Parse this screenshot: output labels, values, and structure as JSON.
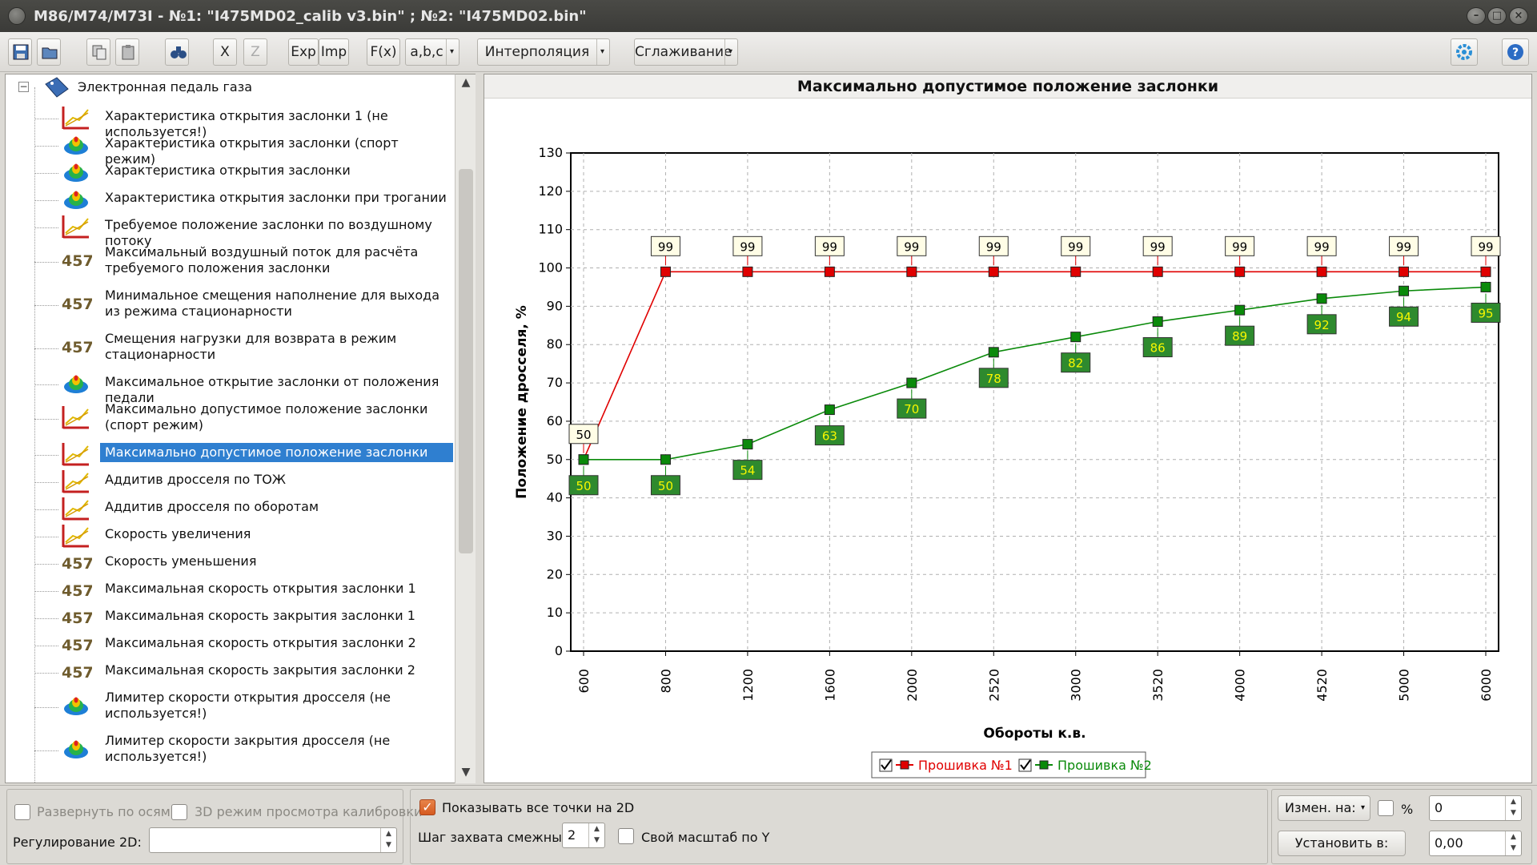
{
  "window": {
    "title": "M86/M74/M73I - №1: \"I475MD02_calib v3.bin\" ; №2: \"I475MD02.bin\""
  },
  "toolbar": {
    "x_label": "X",
    "z_label": "Z",
    "exp_label": "Exp",
    "imp_label": "Imp",
    "fx_label": "F(x)",
    "abc_label": "a,b,c",
    "interp_label": "Интерполяция",
    "smooth_label": "Сглаживание"
  },
  "tree": {
    "root_label": "Электронная педаль газа",
    "items": [
      {
        "label": "Характеристика открытия заслонки 1 (не используется!)",
        "icon": "chart-2d-icon"
      },
      {
        "label": "Характеристика открытия заслонки (спорт режим)",
        "icon": "map-3d-icon"
      },
      {
        "label": "Характеристика открытия заслонки",
        "icon": "map-3d-icon"
      },
      {
        "label": "Характеристика открытия заслонки при трогании",
        "icon": "map-3d-icon"
      },
      {
        "label": "Требуемое положение заслонки по воздушному потоку",
        "icon": "chart-2d-icon"
      },
      {
        "label": "Максимальный воздушный поток для расчёта требуемого положения заслонки",
        "icon": "constant-457-icon"
      },
      {
        "label": "Минимальное смещения наполнение для выхода из режима стационарности",
        "icon": "constant-457-icon"
      },
      {
        "label": "Смещения нагрузки для возврата в режим стационарности",
        "icon": "constant-457-icon"
      },
      {
        "label": "Максимальное открытие заслонки от положения педали",
        "icon": "map-3d-icon"
      },
      {
        "label": "Максимально допустимое положение заслонки (спорт режим)",
        "icon": "chart-2d-icon"
      },
      {
        "label": "Максимально допустимое положение заслонки",
        "icon": "chart-2d-icon"
      },
      {
        "label": "Аддитив дросселя по ТОЖ",
        "icon": "chart-2d-icon"
      },
      {
        "label": "Аддитив дросселя по оборотам",
        "icon": "chart-2d-icon"
      },
      {
        "label": "Скорость увеличения",
        "icon": "chart-2d-icon"
      },
      {
        "label": "Скорость уменьшения",
        "icon": "constant-457-icon"
      },
      {
        "label": "Максимальная скорость открытия заслонки 1",
        "icon": "constant-457-icon"
      },
      {
        "label": "Максимальная скорость закрытия заслонки 1",
        "icon": "constant-457-icon"
      },
      {
        "label": "Максимальная скорость открытия заслонки 2",
        "icon": "constant-457-icon"
      },
      {
        "label": "Максимальная скорость закрытия заслонки 2",
        "icon": "constant-457-icon"
      },
      {
        "label": "Лимитер скорости открытия дросселя (не используется!)",
        "icon": "map-3d-icon"
      },
      {
        "label": "Лимитер скорости закрытия дросселя (не используется!)",
        "icon": "map-3d-icon"
      }
    ],
    "selected_index": 10,
    "const_glyph": "457"
  },
  "chart_data": {
    "type": "line",
    "title": "Максимально допустимое положение заслонки",
    "xlabel": "Обороты к.в.",
    "ylabel": "Положение дросселя, %",
    "categories": [
      "600",
      "800",
      "1200",
      "1600",
      "2000",
      "2520",
      "3000",
      "3520",
      "4000",
      "4520",
      "5000",
      "6000"
    ],
    "ylim": [
      0,
      130
    ],
    "yticks": [
      0,
      10,
      20,
      30,
      40,
      50,
      60,
      70,
      80,
      90,
      100,
      110,
      120,
      130
    ],
    "grid": true,
    "legend_position": "bottom-center",
    "series": [
      {
        "name": "Прошивка №1",
        "color": "#e00000",
        "values": [
          50,
          99,
          99,
          99,
          99,
          99,
          99,
          99,
          99,
          99,
          99,
          99
        ],
        "label_side": "above"
      },
      {
        "name": "Прошивка №2",
        "color": "#0a8a0a",
        "values": [
          50,
          50,
          54,
          63,
          70,
          78,
          82,
          86,
          89,
          92,
          94,
          95
        ],
        "label_side": "below"
      }
    ]
  },
  "bottom": {
    "expand_axes_label": "Развернуть по осям",
    "mode3d_label": "3D режим просмотра калибровки",
    "regulation_label": "Регулирование 2D:",
    "show_all_points_label": "Показывать все точки на 2D",
    "step_label": "Шаг захвата смежных:",
    "step_value": "2",
    "own_scale_label": "Свой масштаб по Y",
    "change_by_label": "Измен. на:",
    "percent_label": "%",
    "change_value": "0",
    "set_to_label": "Установить в:",
    "set_value": "0,00"
  },
  "colors": {
    "selection": "#2f7fd0",
    "series1": "#e00000",
    "series2": "#0a8a0a"
  }
}
